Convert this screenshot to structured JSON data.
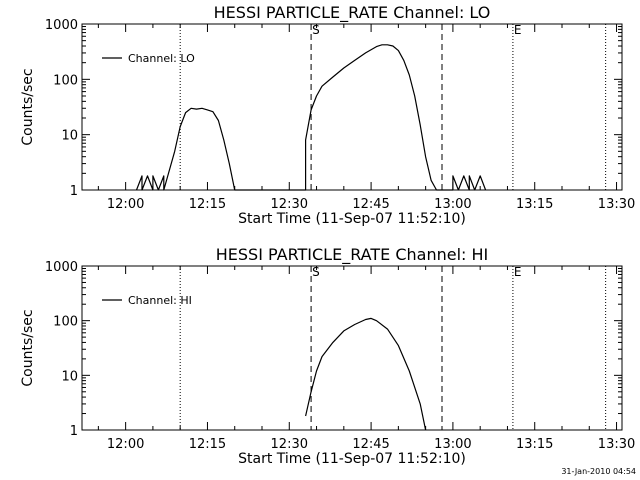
{
  "footer_timestamp": "31-Jan-2010 04:54",
  "chart_data": [
    {
      "type": "line",
      "title": "HESSI PARTICLE_RATE Channel: LO",
      "xlabel": "Start Time (11-Sep-07 11:52:10)",
      "ylabel": "Counts/sec",
      "yscale": "log",
      "ylim": [
        1,
        1000
      ],
      "xlim_minutes_of_day": [
        712,
        811
      ],
      "x_ticks": [
        "12:00",
        "12:15",
        "12:30",
        "12:45",
        "13:00",
        "13:15",
        "13:30"
      ],
      "y_ticks": [
        "1",
        "10",
        "100",
        "1000"
      ],
      "legend": {
        "label": "Channel: LO",
        "placement": "top-left"
      },
      "markers": [
        {
          "label": "S",
          "time": "12:34"
        },
        {
          "label": "E",
          "time": "13:11"
        }
      ],
      "dashed_lines": [
        "12:34",
        "12:58"
      ],
      "dotted_lines": [
        "12:10",
        "13:11",
        "13:28"
      ],
      "series": [
        {
          "time": [
            "12:02",
            "12:03",
            "12:03",
            "12:04",
            "12:05",
            "12:05",
            "12:06",
            "12:07",
            "12:07",
            "12:09",
            "12:10",
            "12:11",
            "12:12",
            "12:13",
            "12:14",
            "12:15",
            "12:16",
            "12:17",
            "12:18",
            "12:19",
            "12:20",
            "12:33",
            "12:33",
            "12:34",
            "12:35",
            "12:36",
            "12:38",
            "12:40",
            "12:42",
            "12:44",
            "12:46",
            "12:47",
            "12:48",
            "12:49",
            "12:50",
            "12:51",
            "12:52",
            "12:53",
            "12:54",
            "12:55",
            "12:56",
            "12:57",
            "13:00",
            "13:00",
            "13:01",
            "13:02",
            "13:03",
            "13:03",
            "13:04",
            "13:05",
            "13:06"
          ],
          "values": [
            1,
            1.8,
            1,
            1.8,
            1,
            1.8,
            1,
            1.8,
            1,
            5,
            14,
            25,
            30,
            29,
            30,
            28,
            26,
            18,
            8,
            3,
            1,
            1,
            8,
            28,
            50,
            75,
            110,
            160,
            220,
            300,
            390,
            420,
            420,
            400,
            330,
            220,
            120,
            50,
            15,
            4,
            1.5,
            1,
            1,
            1.8,
            1,
            1.8,
            1,
            1.8,
            1,
            1.8,
            1
          ]
        }
      ]
    },
    {
      "type": "line",
      "title": "HESSI PARTICLE_RATE Channel: HI",
      "xlabel": "Start Time (11-Sep-07 11:52:10)",
      "ylabel": "Counts/sec",
      "yscale": "log",
      "ylim": [
        1,
        1000
      ],
      "xlim_minutes_of_day": [
        712,
        811
      ],
      "x_ticks": [
        "12:00",
        "12:15",
        "12:30",
        "12:45",
        "13:00",
        "13:15",
        "13:30"
      ],
      "y_ticks": [
        "1",
        "10",
        "100",
        "1000"
      ],
      "legend": {
        "label": "Channel: HI",
        "placement": "top-left"
      },
      "markers": [
        {
          "label": "S",
          "time": "12:34"
        },
        {
          "label": "E",
          "time": "13:11"
        }
      ],
      "dashed_lines": [
        "12:34",
        "12:58"
      ],
      "dotted_lines": [
        "12:10",
        "13:11",
        "13:28"
      ],
      "series": [
        {
          "time": [
            "12:33",
            "12:34",
            "12:35",
            "12:36",
            "12:38",
            "12:40",
            "12:42",
            "12:44",
            "12:45",
            "12:46",
            "12:48",
            "12:50",
            "12:52",
            "12:54",
            "12:55"
          ],
          "values": [
            1.8,
            5,
            12,
            22,
            40,
            65,
            85,
            105,
            110,
            100,
            70,
            35,
            12,
            3,
            1
          ]
        }
      ]
    }
  ]
}
